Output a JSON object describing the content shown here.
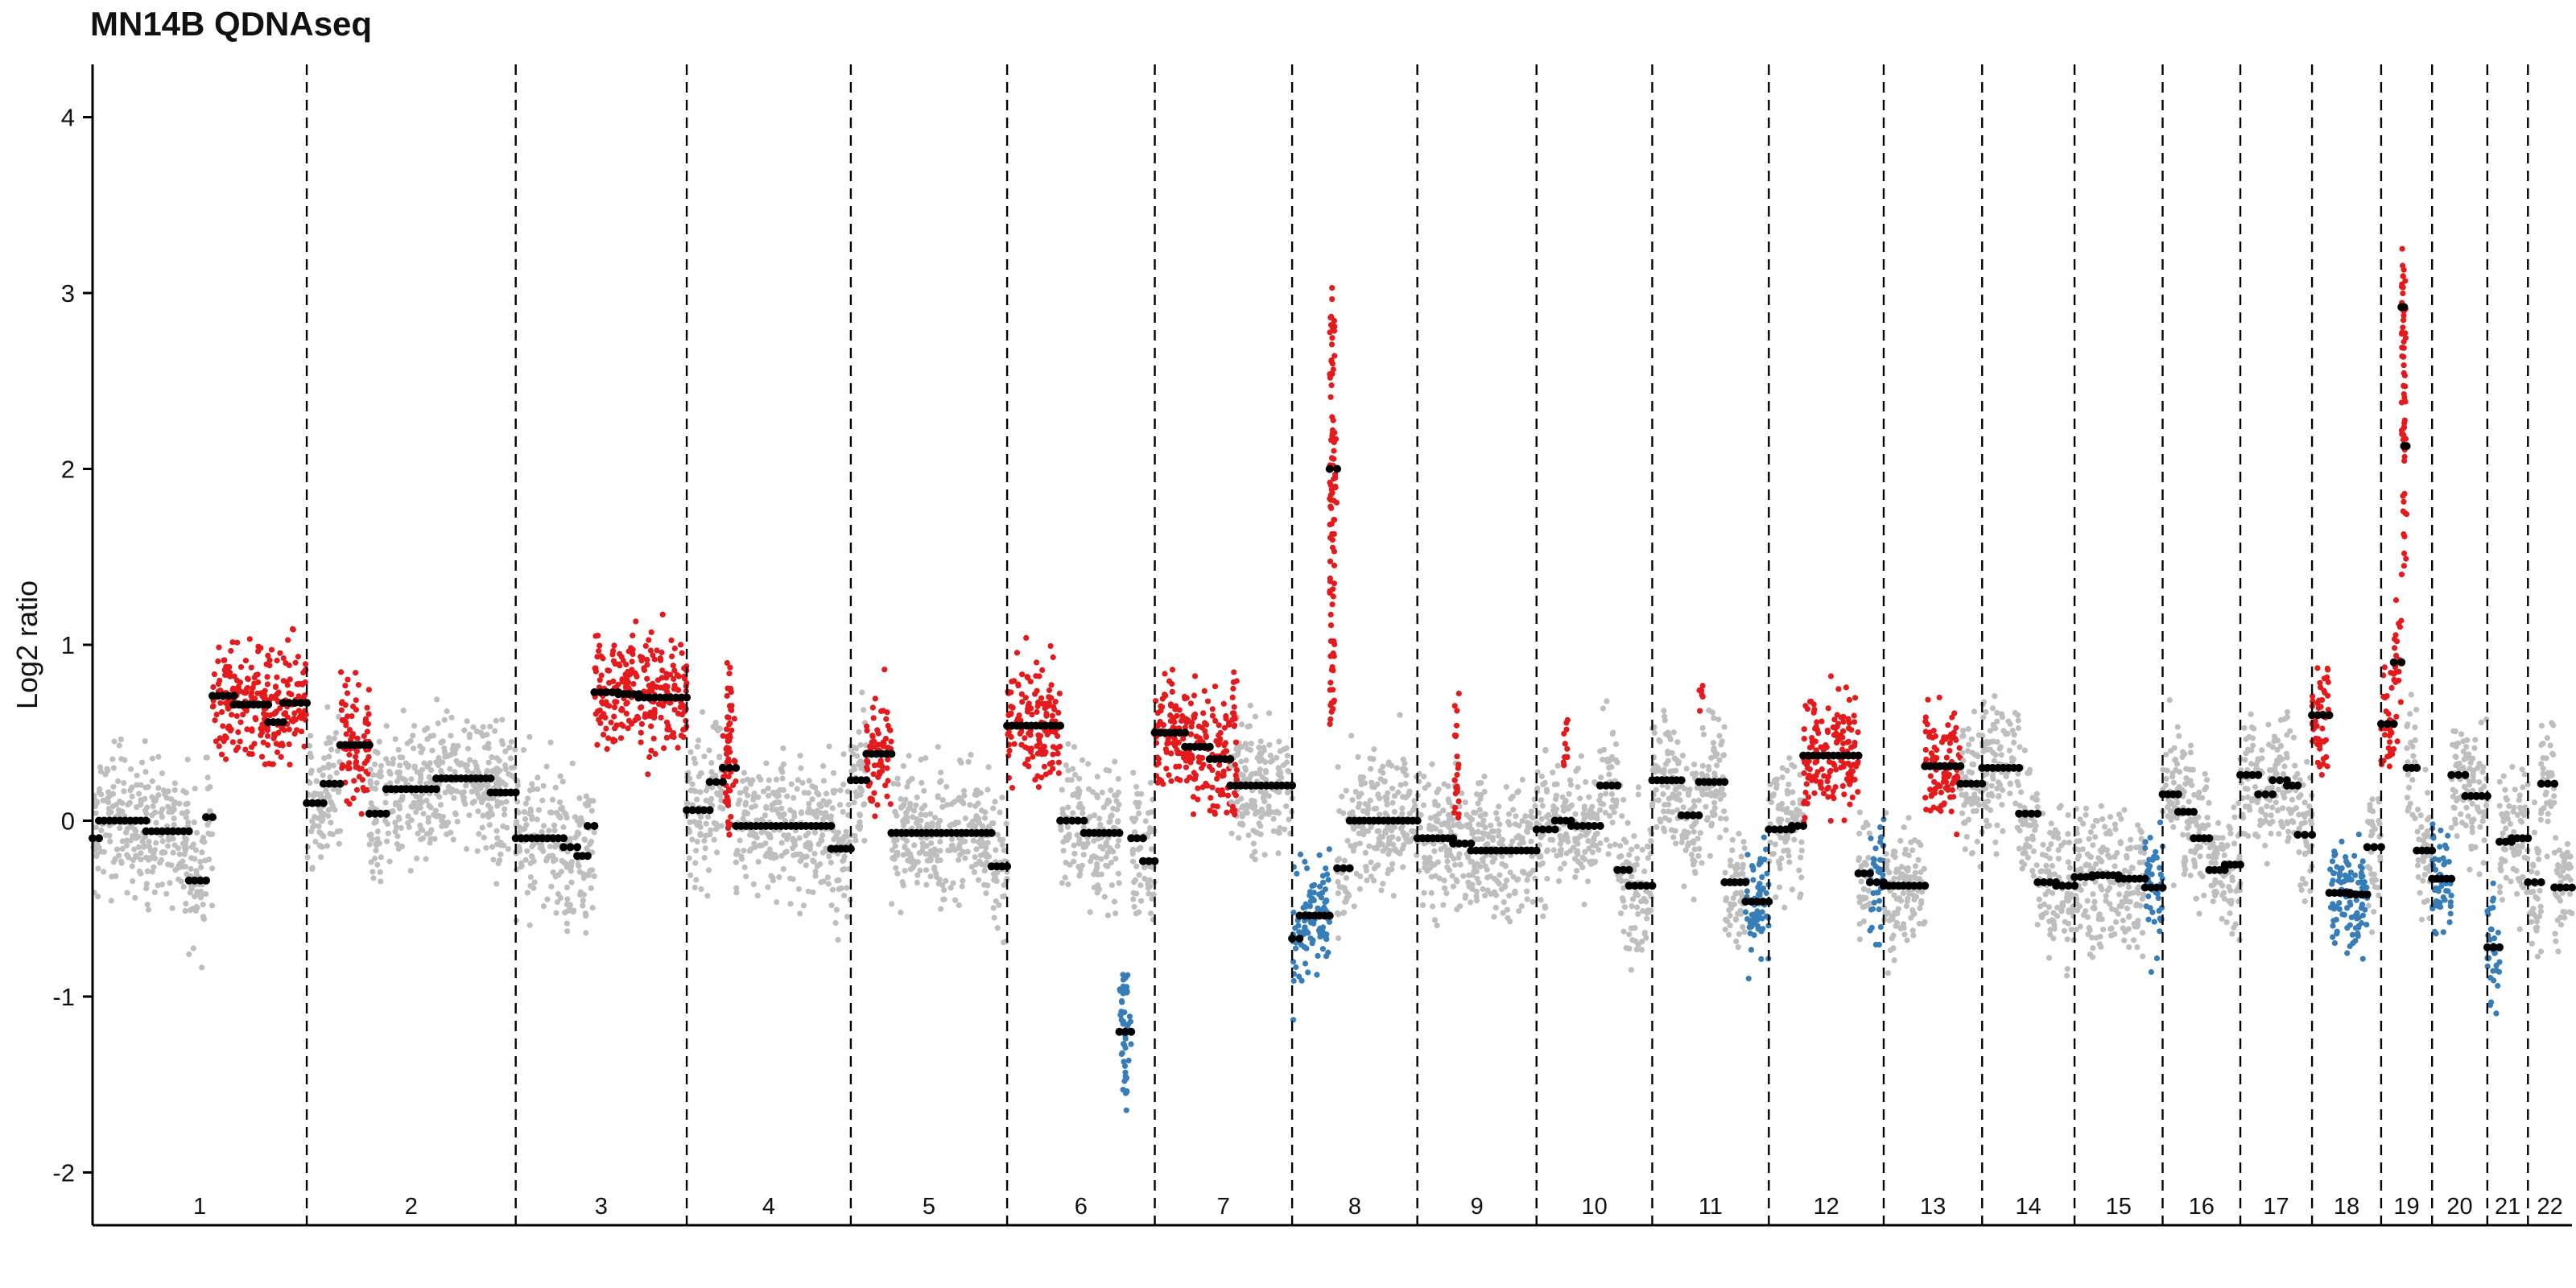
{
  "chart_data": {
    "type": "scatter",
    "title": "MN14B QDNAseq",
    "xlabel": "",
    "ylabel": "Log2 ratio",
    "ylim": [
      -2.3,
      4.3
    ],
    "yticks": [
      -2,
      -1,
      0,
      1,
      2,
      3,
      4
    ],
    "grid": false,
    "legend": "none",
    "colors": {
      "neutral": "#bebebe",
      "gain": "#e41a1c",
      "loss": "#377eb8",
      "segment": "#000000",
      "separator": "#000000"
    },
    "chromosomes": [
      {
        "label": "1",
        "start": 0,
        "end": 248
      },
      {
        "label": "2",
        "start": 248,
        "end": 490
      },
      {
        "label": "3",
        "start": 490,
        "end": 688
      },
      {
        "label": "4",
        "start": 688,
        "end": 878
      },
      {
        "label": "5",
        "start": 878,
        "end": 1059
      },
      {
        "label": "6",
        "start": 1059,
        "end": 1230
      },
      {
        "label": "7",
        "start": 1230,
        "end": 1389
      },
      {
        "label": "8",
        "start": 1389,
        "end": 1534
      },
      {
        "label": "9",
        "start": 1534,
        "end": 1672
      },
      {
        "label": "10",
        "start": 1672,
        "end": 1806
      },
      {
        "label": "11",
        "start": 1806,
        "end": 1941
      },
      {
        "label": "12",
        "start": 1941,
        "end": 2074
      },
      {
        "label": "13",
        "start": 2074,
        "end": 2188
      },
      {
        "label": "14",
        "start": 2188,
        "end": 2295
      },
      {
        "label": "15",
        "start": 2295,
        "end": 2397
      },
      {
        "label": "16",
        "start": 2397,
        "end": 2487
      },
      {
        "label": "17",
        "start": 2487,
        "end": 2570
      },
      {
        "label": "18",
        "start": 2570,
        "end": 2650
      },
      {
        "label": "19",
        "start": 2650,
        "end": 2709
      },
      {
        "label": "20",
        "start": 2709,
        "end": 2773
      },
      {
        "label": "21",
        "start": 2773,
        "end": 2820
      },
      {
        "label": "22",
        "start": 2820,
        "end": 2871
      }
    ],
    "segments": [
      {
        "chr": "1",
        "from": 0.0,
        "to": 0.03,
        "y": -0.1,
        "call": "neutral"
      },
      {
        "chr": "1",
        "from": 0.03,
        "to": 0.25,
        "y": 0.0,
        "call": "neutral"
      },
      {
        "chr": "1",
        "from": 0.25,
        "to": 0.45,
        "y": -0.06,
        "call": "neutral"
      },
      {
        "chr": "1",
        "from": 0.45,
        "to": 0.53,
        "y": -0.34,
        "call": "neutral"
      },
      {
        "chr": "1",
        "from": 0.53,
        "to": 0.56,
        "y": 0.02,
        "call": "neutral"
      },
      {
        "chr": "1",
        "from": 0.56,
        "to": 0.66,
        "y": 0.71,
        "call": "gain"
      },
      {
        "chr": "1",
        "from": 0.66,
        "to": 0.82,
        "y": 0.66,
        "call": "gain"
      },
      {
        "chr": "1",
        "from": 0.82,
        "to": 0.89,
        "y": 0.56,
        "call": "gain"
      },
      {
        "chr": "1",
        "from": 0.89,
        "to": 1.0,
        "y": 0.67,
        "call": "gain"
      },
      {
        "chr": "2",
        "from": 0.0,
        "to": 0.08,
        "y": 0.1,
        "call": "neutral"
      },
      {
        "chr": "2",
        "from": 0.08,
        "to": 0.16,
        "y": 0.21,
        "call": "neutral"
      },
      {
        "chr": "2",
        "from": 0.16,
        "to": 0.3,
        "y": 0.43,
        "call": "gain"
      },
      {
        "chr": "2",
        "from": 0.3,
        "to": 0.38,
        "y": 0.04,
        "call": "neutral"
      },
      {
        "chr": "2",
        "from": 0.38,
        "to": 0.62,
        "y": 0.18,
        "call": "neutral"
      },
      {
        "chr": "2",
        "from": 0.62,
        "to": 0.88,
        "y": 0.24,
        "call": "neutral"
      },
      {
        "chr": "2",
        "from": 0.88,
        "to": 1.0,
        "y": 0.16,
        "call": "neutral"
      },
      {
        "chr": "3",
        "from": 0.0,
        "to": 0.28,
        "y": -0.1,
        "call": "neutral"
      },
      {
        "chr": "3",
        "from": 0.28,
        "to": 0.36,
        "y": -0.15,
        "call": "neutral"
      },
      {
        "chr": "3",
        "from": 0.36,
        "to": 0.42,
        "y": -0.2,
        "call": "neutral"
      },
      {
        "chr": "3",
        "from": 0.42,
        "to": 0.46,
        "y": -0.03,
        "call": "neutral"
      },
      {
        "chr": "3",
        "from": 0.46,
        "to": 0.6,
        "y": 0.73,
        "call": "gain"
      },
      {
        "chr": "3",
        "from": 0.6,
        "to": 0.72,
        "y": 0.72,
        "call": "gain"
      },
      {
        "chr": "3",
        "from": 0.72,
        "to": 1.0,
        "y": 0.7,
        "call": "gain"
      },
      {
        "chr": "4",
        "from": 0.0,
        "to": 0.14,
        "y": 0.06,
        "call": "neutral"
      },
      {
        "chr": "4",
        "from": 0.14,
        "to": 0.22,
        "y": 0.22,
        "call": "neutral"
      },
      {
        "chr": "4",
        "from": 0.22,
        "to": 0.3,
        "y": 0.3,
        "call": "gain"
      },
      {
        "chr": "4",
        "from": 0.3,
        "to": 0.88,
        "y": -0.03,
        "call": "neutral"
      },
      {
        "chr": "4",
        "from": 0.88,
        "to": 1.0,
        "y": -0.16,
        "call": "neutral"
      },
      {
        "chr": "5",
        "from": 0.0,
        "to": 0.1,
        "y": 0.23,
        "call": "neutral"
      },
      {
        "chr": "5",
        "from": 0.1,
        "to": 0.26,
        "y": 0.38,
        "call": "gain"
      },
      {
        "chr": "5",
        "from": 0.26,
        "to": 0.9,
        "y": -0.07,
        "call": "neutral"
      },
      {
        "chr": "5",
        "from": 0.9,
        "to": 1.0,
        "y": -0.26,
        "call": "neutral"
      },
      {
        "chr": "6",
        "from": 0.0,
        "to": 0.36,
        "y": 0.54,
        "call": "gain"
      },
      {
        "chr": "6",
        "from": 0.36,
        "to": 0.52,
        "y": 0.0,
        "call": "neutral"
      },
      {
        "chr": "6",
        "from": 0.52,
        "to": 0.76,
        "y": -0.07,
        "call": "neutral"
      },
      {
        "chr": "6",
        "from": 0.76,
        "to": 0.84,
        "y": -1.2,
        "call": "loss"
      },
      {
        "chr": "6",
        "from": 0.84,
        "to": 0.92,
        "y": -0.1,
        "call": "neutral"
      },
      {
        "chr": "6",
        "from": 0.92,
        "to": 1.0,
        "y": -0.23,
        "call": "neutral"
      },
      {
        "chr": "7",
        "from": 0.0,
        "to": 0.22,
        "y": 0.5,
        "call": "gain"
      },
      {
        "chr": "7",
        "from": 0.22,
        "to": 0.4,
        "y": 0.42,
        "call": "gain"
      },
      {
        "chr": "7",
        "from": 0.4,
        "to": 0.55,
        "y": 0.35,
        "call": "gain"
      },
      {
        "chr": "7",
        "from": 0.55,
        "to": 1.0,
        "y": 0.2,
        "call": "neutral"
      },
      {
        "chr": "8",
        "from": 0.0,
        "to": 0.06,
        "y": -0.67,
        "call": "loss"
      },
      {
        "chr": "8",
        "from": 0.06,
        "to": 0.3,
        "y": -0.54,
        "call": "loss"
      },
      {
        "chr": "8",
        "from": 0.3,
        "to": 0.36,
        "y": 2.0,
        "call": "gain"
      },
      {
        "chr": "8",
        "from": 0.36,
        "to": 0.46,
        "y": -0.27,
        "call": "neutral"
      },
      {
        "chr": "8",
        "from": 0.46,
        "to": 1.0,
        "y": 0.0,
        "call": "neutral"
      },
      {
        "chr": "9",
        "from": 0.0,
        "to": 0.3,
        "y": -0.1,
        "call": "neutral"
      },
      {
        "chr": "9",
        "from": 0.3,
        "to": 0.45,
        "y": -0.13,
        "call": "neutral"
      },
      {
        "chr": "9",
        "from": 0.45,
        "to": 1.0,
        "y": -0.17,
        "call": "neutral"
      },
      {
        "chr": "10",
        "from": 0.0,
        "to": 0.16,
        "y": -0.05,
        "call": "neutral"
      },
      {
        "chr": "10",
        "from": 0.16,
        "to": 0.3,
        "y": 0.0,
        "call": "neutral"
      },
      {
        "chr": "10",
        "from": 0.3,
        "to": 0.55,
        "y": -0.03,
        "call": "neutral"
      },
      {
        "chr": "10",
        "from": 0.55,
        "to": 0.7,
        "y": 0.2,
        "call": "neutral"
      },
      {
        "chr": "10",
        "from": 0.7,
        "to": 0.8,
        "y": -0.28,
        "call": "neutral"
      },
      {
        "chr": "10",
        "from": 0.8,
        "to": 1.0,
        "y": -0.37,
        "call": "neutral"
      },
      {
        "chr": "11",
        "from": 0.0,
        "to": 0.25,
        "y": 0.23,
        "call": "neutral"
      },
      {
        "chr": "11",
        "from": 0.25,
        "to": 0.4,
        "y": 0.03,
        "call": "neutral"
      },
      {
        "chr": "11",
        "from": 0.4,
        "to": 0.62,
        "y": 0.22,
        "call": "neutral"
      },
      {
        "chr": "11",
        "from": 0.62,
        "to": 0.8,
        "y": -0.35,
        "call": "neutral"
      },
      {
        "chr": "11",
        "from": 0.8,
        "to": 1.0,
        "y": -0.46,
        "call": "loss"
      },
      {
        "chr": "12",
        "from": 0.0,
        "to": 0.2,
        "y": -0.05,
        "call": "neutral"
      },
      {
        "chr": "12",
        "from": 0.2,
        "to": 0.3,
        "y": -0.03,
        "call": "neutral"
      },
      {
        "chr": "12",
        "from": 0.3,
        "to": 0.78,
        "y": 0.37,
        "call": "gain"
      },
      {
        "chr": "12",
        "from": 0.78,
        "to": 0.88,
        "y": -0.3,
        "call": "neutral"
      },
      {
        "chr": "12",
        "from": 0.88,
        "to": 1.0,
        "y": -0.35,
        "call": "loss"
      },
      {
        "chr": "13",
        "from": 0.0,
        "to": 0.2,
        "y": -0.37,
        "call": "neutral"
      },
      {
        "chr": "13",
        "from": 0.2,
        "to": 0.42,
        "y": -0.37,
        "call": "neutral"
      },
      {
        "chr": "13",
        "from": 0.42,
        "to": 0.62,
        "y": 0.31,
        "call": "gain"
      },
      {
        "chr": "13",
        "from": 0.62,
        "to": 0.78,
        "y": 0.31,
        "call": "gain"
      },
      {
        "chr": "13",
        "from": 0.78,
        "to": 1.0,
        "y": 0.21,
        "call": "neutral"
      },
      {
        "chr": "14",
        "from": 0.0,
        "to": 0.4,
        "y": 0.3,
        "call": "neutral"
      },
      {
        "chr": "14",
        "from": 0.4,
        "to": 0.6,
        "y": 0.04,
        "call": "neutral"
      },
      {
        "chr": "14",
        "from": 0.6,
        "to": 0.8,
        "y": -0.35,
        "call": "neutral"
      },
      {
        "chr": "14",
        "from": 0.8,
        "to": 1.0,
        "y": -0.37,
        "call": "neutral"
      },
      {
        "chr": "15",
        "from": 0.0,
        "to": 0.2,
        "y": -0.32,
        "call": "neutral"
      },
      {
        "chr": "15",
        "from": 0.2,
        "to": 0.5,
        "y": -0.31,
        "call": "neutral"
      },
      {
        "chr": "15",
        "from": 0.5,
        "to": 0.8,
        "y": -0.33,
        "call": "neutral"
      },
      {
        "chr": "15",
        "from": 0.8,
        "to": 1.0,
        "y": -0.38,
        "call": "loss"
      },
      {
        "chr": "16",
        "from": 0.0,
        "to": 0.2,
        "y": 0.15,
        "call": "neutral"
      },
      {
        "chr": "16",
        "from": 0.2,
        "to": 0.4,
        "y": 0.05,
        "call": "neutral"
      },
      {
        "chr": "16",
        "from": 0.4,
        "to": 0.6,
        "y": -0.1,
        "call": "neutral"
      },
      {
        "chr": "16",
        "from": 0.6,
        "to": 0.8,
        "y": -0.28,
        "call": "neutral"
      },
      {
        "chr": "16",
        "from": 0.8,
        "to": 1.0,
        "y": -0.25,
        "call": "neutral"
      },
      {
        "chr": "17",
        "from": 0.0,
        "to": 0.25,
        "y": 0.26,
        "call": "neutral"
      },
      {
        "chr": "17",
        "from": 0.25,
        "to": 0.45,
        "y": 0.15,
        "call": "neutral"
      },
      {
        "chr": "17",
        "from": 0.45,
        "to": 0.65,
        "y": 0.23,
        "call": "neutral"
      },
      {
        "chr": "17",
        "from": 0.65,
        "to": 0.8,
        "y": 0.2,
        "call": "neutral"
      },
      {
        "chr": "17",
        "from": 0.8,
        "to": 1.0,
        "y": -0.08,
        "call": "neutral"
      },
      {
        "chr": "18",
        "from": 0.0,
        "to": 0.25,
        "y": 0.6,
        "call": "gain"
      },
      {
        "chr": "18",
        "from": 0.25,
        "to": 0.55,
        "y": -0.41,
        "call": "loss"
      },
      {
        "chr": "18",
        "from": 0.55,
        "to": 0.8,
        "y": -0.42,
        "call": "loss"
      },
      {
        "chr": "18",
        "from": 0.8,
        "to": 1.0,
        "y": -0.15,
        "call": "neutral"
      },
      {
        "chr": "19",
        "from": 0.0,
        "to": 0.25,
        "y": 0.55,
        "call": "gain"
      },
      {
        "chr": "19",
        "from": 0.25,
        "to": 0.4,
        "y": 0.9,
        "call": "gain"
      },
      {
        "chr": "19",
        "from": 0.4,
        "to": 0.45,
        "y": 2.92,
        "call": "gain"
      },
      {
        "chr": "19",
        "from": 0.45,
        "to": 0.5,
        "y": 2.13,
        "call": "gain"
      },
      {
        "chr": "19",
        "from": 0.5,
        "to": 0.7,
        "y": 0.3,
        "call": "neutral"
      },
      {
        "chr": "19",
        "from": 0.7,
        "to": 1.0,
        "y": -0.17,
        "call": "neutral"
      },
      {
        "chr": "20",
        "from": 0.0,
        "to": 0.35,
        "y": -0.33,
        "call": "loss"
      },
      {
        "chr": "20",
        "from": 0.35,
        "to": 0.6,
        "y": 0.26,
        "call": "neutral"
      },
      {
        "chr": "20",
        "from": 0.6,
        "to": 1.0,
        "y": 0.14,
        "call": "neutral"
      },
      {
        "chr": "21",
        "from": 0.0,
        "to": 0.3,
        "y": -0.72,
        "call": "loss"
      },
      {
        "chr": "21",
        "from": 0.3,
        "to": 0.6,
        "y": -0.12,
        "call": "neutral"
      },
      {
        "chr": "21",
        "from": 0.6,
        "to": 1.0,
        "y": -0.1,
        "call": "neutral"
      },
      {
        "chr": "22",
        "from": 0.0,
        "to": 0.3,
        "y": -0.35,
        "call": "neutral"
      },
      {
        "chr": "22",
        "from": 0.3,
        "to": 0.6,
        "y": 0.21,
        "call": "neutral"
      },
      {
        "chr": "22",
        "from": 0.6,
        "to": 1.0,
        "y": -0.38,
        "call": "neutral"
      }
    ],
    "outliers": [
      {
        "chr": "6",
        "pos": 0.8,
        "from": -1.55,
        "to": -0.85,
        "call": "loss"
      },
      {
        "chr": "8",
        "pos": 0.32,
        "from": 0.4,
        "to": 3.05,
        "call": "gain"
      },
      {
        "chr": "19",
        "pos": 0.45,
        "from": 1.4,
        "to": 3.17,
        "call": "gain"
      },
      {
        "chr": "9",
        "pos": 0.33,
        "from": 0.0,
        "to": 0.8,
        "call": "gain"
      },
      {
        "chr": "7",
        "pos": 0.58,
        "from": 0.0,
        "to": 0.85,
        "call": "gain"
      },
      {
        "chr": "4",
        "pos": 0.26,
        "from": -0.1,
        "to": 0.9,
        "call": "gain"
      },
      {
        "chr": "10",
        "pos": 0.25,
        "from": 0.25,
        "to": 0.6,
        "call": "gain"
      },
      {
        "chr": "11",
        "pos": 0.42,
        "from": 0.6,
        "to": 0.8,
        "call": "gain"
      }
    ]
  }
}
